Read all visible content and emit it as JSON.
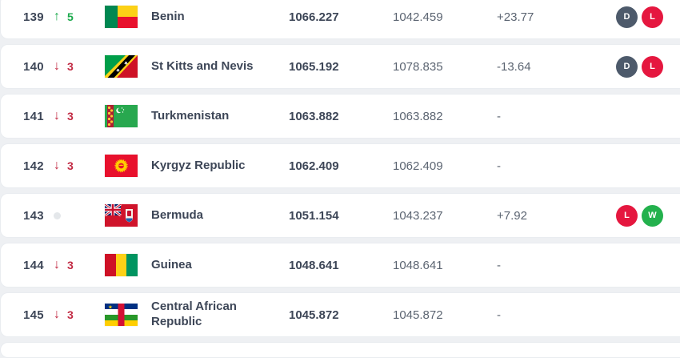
{
  "colors": {
    "up_green": "#1ba94c",
    "down_red": "#c22b44",
    "neutral_dot": "#e4e7ea",
    "badge_draw": "#4d5a6b",
    "badge_loss": "#e5173f",
    "badge_win": "#23b14d",
    "text_dark": "#3d4657",
    "text_gray": "#5c6572",
    "card_bg": "#ffffff",
    "page_bg": "#eef0f3"
  },
  "table": {
    "rows": [
      {
        "rank": "139",
        "movement": {
          "direction": "up",
          "value": "5"
        },
        "flag": "benin",
        "country": "Benin",
        "points": "1066.227",
        "prev_points": "1042.459",
        "change": "+23.77",
        "results": [
          {
            "label": "D",
            "type": "draw"
          },
          {
            "label": "L",
            "type": "loss"
          }
        ]
      },
      {
        "rank": "140",
        "movement": {
          "direction": "down",
          "value": "3"
        },
        "flag": "st-kitts-and-nevis",
        "country": "St Kitts and Nevis",
        "points": "1065.192",
        "prev_points": "1078.835",
        "change": "-13.64",
        "results": [
          {
            "label": "D",
            "type": "draw"
          },
          {
            "label": "L",
            "type": "loss"
          }
        ]
      },
      {
        "rank": "141",
        "movement": {
          "direction": "down",
          "value": "3"
        },
        "flag": "turkmenistan",
        "country": "Turkmenistan",
        "points": "1063.882",
        "prev_points": "1063.882",
        "change": "-",
        "results": []
      },
      {
        "rank": "142",
        "movement": {
          "direction": "down",
          "value": "3"
        },
        "flag": "kyrgyz-republic",
        "country": "Kyrgyz Republic",
        "points": "1062.409",
        "prev_points": "1062.409",
        "change": "-",
        "results": []
      },
      {
        "rank": "143",
        "movement": {
          "direction": "none",
          "value": ""
        },
        "flag": "bermuda",
        "country": "Bermuda",
        "points": "1051.154",
        "prev_points": "1043.237",
        "change": "+7.92",
        "results": [
          {
            "label": "L",
            "type": "loss"
          },
          {
            "label": "W",
            "type": "win"
          }
        ]
      },
      {
        "rank": "144",
        "movement": {
          "direction": "down",
          "value": "3"
        },
        "flag": "guinea",
        "country": "Guinea",
        "points": "1048.641",
        "prev_points": "1048.641",
        "change": "-",
        "results": []
      },
      {
        "rank": "145",
        "movement": {
          "direction": "down",
          "value": "3"
        },
        "flag": "central-african-republic",
        "country": "Central African Republic",
        "points": "1045.872",
        "prev_points": "1045.872",
        "change": "-",
        "results": []
      }
    ]
  }
}
